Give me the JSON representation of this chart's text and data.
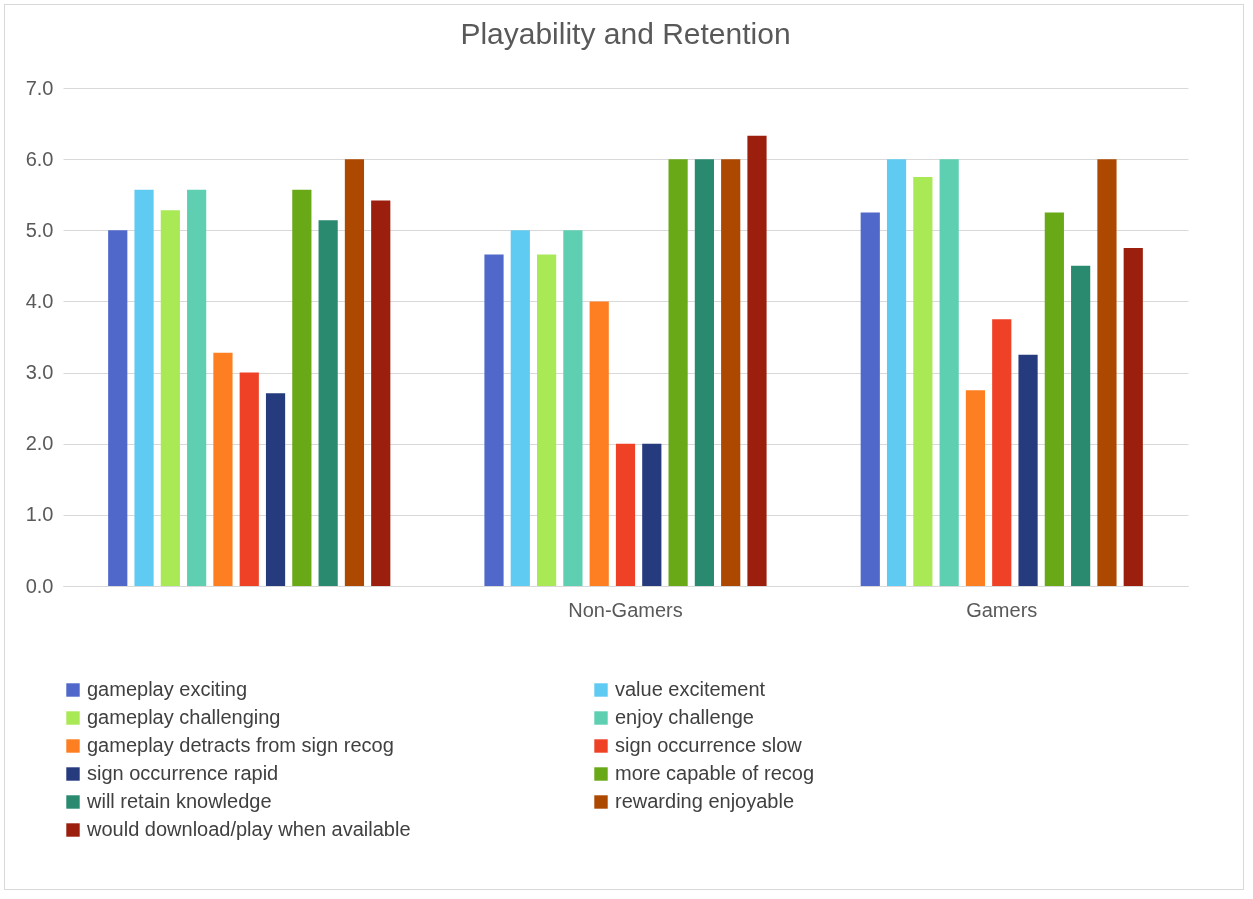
{
  "chart_data": {
    "type": "bar",
    "title": "Playability and Retention",
    "categories": [
      null,
      "Non-Gamers",
      "Gamers"
    ],
    "ylim": [
      0,
      7
    ],
    "yticks": [
      {
        "value": 0,
        "label": "0.0"
      },
      {
        "value": 1,
        "label": "1.0"
      },
      {
        "value": 2,
        "label": "2.0"
      },
      {
        "value": 3,
        "label": "3.0"
      },
      {
        "value": 4,
        "label": "4.0"
      },
      {
        "value": 5,
        "label": "5.0"
      },
      {
        "value": 6,
        "label": "6.0"
      },
      {
        "value": 7,
        "label": "7.0"
      }
    ],
    "grid": "y",
    "legend": "bottom",
    "series": [
      {
        "name": "gameplay exciting",
        "color": "#4f68c9",
        "values": [
          5.0,
          4.66,
          5.25
        ]
      },
      {
        "name": "value excitement",
        "color": "#5fcbf2",
        "values": [
          5.57,
          5.0,
          6.0
        ]
      },
      {
        "name": "gameplay challenging",
        "color": "#a9e955",
        "values": [
          5.28,
          4.66,
          5.75
        ]
      },
      {
        "name": "enjoy challenge",
        "color": "#5ecfb1",
        "values": [
          5.57,
          5.0,
          6.0
        ]
      },
      {
        "name": "gameplay detracts from sign recog",
        "color": "#fe7f22",
        "values": [
          3.28,
          4.0,
          2.75
        ]
      },
      {
        "name": "sign occurrence slow",
        "color": "#ef4126",
        "values": [
          3.0,
          2.0,
          3.75
        ]
      },
      {
        "name": "sign occurrence rapid",
        "color": "#263a7e",
        "values": [
          2.71,
          2.0,
          3.25
        ]
      },
      {
        "name": "more capable of recog",
        "color": "#69a816",
        "values": [
          5.57,
          6.0,
          5.25
        ]
      },
      {
        "name": "will retain knowledge",
        "color": "#298a70",
        "values": [
          5.14,
          6.0,
          4.5
        ]
      },
      {
        "name": "rewarding enjoyable",
        "color": "#ad4800",
        "values": [
          6.0,
          6.0,
          6.0
        ]
      },
      {
        "name": "would download/play when available",
        "color": "#9b1f0c",
        "values": [
          5.42,
          6.33,
          4.75
        ]
      }
    ]
  }
}
